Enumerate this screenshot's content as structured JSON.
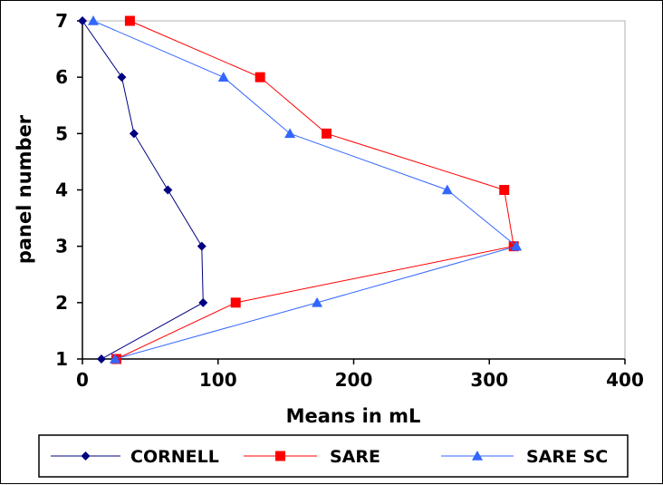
{
  "chart_data": {
    "type": "line",
    "title": "",
    "xlabel": "Means in mL",
    "ylabel": "panel number",
    "xlim": [
      0,
      400
    ],
    "ylim": [
      1,
      7
    ],
    "xticks": [
      0,
      100,
      200,
      300,
      400
    ],
    "yticks": [
      1,
      2,
      3,
      4,
      5,
      6,
      7
    ],
    "grid": false,
    "legend_position": "bottom",
    "series": [
      {
        "name": "CORNELL",
        "color": "#000080",
        "marker": "diamond",
        "x": [
          14,
          89,
          88,
          63,
          38,
          29,
          0
        ],
        "y": [
          1,
          2,
          3,
          4,
          5,
          6,
          7
        ]
      },
      {
        "name": "SARE",
        "color": "#ff0000",
        "marker": "square",
        "x": [
          25,
          113,
          318,
          311,
          180,
          131,
          35
        ],
        "y": [
          1,
          2,
          3,
          4,
          5,
          6,
          7
        ]
      },
      {
        "name": "SARE SC",
        "color": "#3366ff",
        "marker": "triangle",
        "x": [
          24,
          173,
          320,
          269,
          153,
          104,
          8
        ],
        "y": [
          1,
          2,
          3,
          4,
          5,
          6,
          7
        ]
      }
    ]
  }
}
